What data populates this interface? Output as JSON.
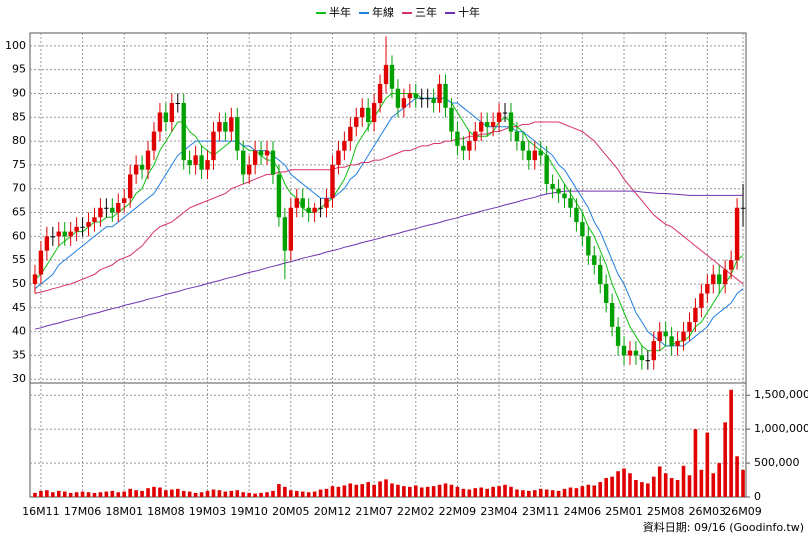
{
  "chart_data": {
    "type": "candlestick",
    "categories": [
      null,
      "16M11",
      null,
      null,
      null,
      null,
      null,
      null,
      "17M06",
      null,
      null,
      null,
      null,
      null,
      null,
      "18M01",
      null,
      null,
      null,
      null,
      null,
      null,
      "18M08",
      null,
      null,
      null,
      null,
      null,
      null,
      "19M03",
      null,
      null,
      null,
      null,
      null,
      null,
      "19M10",
      null,
      null,
      null,
      null,
      null,
      null,
      "20M05",
      null,
      null,
      null,
      null,
      null,
      null,
      "20M12",
      null,
      null,
      null,
      null,
      null,
      null,
      "21M07",
      null,
      null,
      null,
      null,
      null,
      null,
      "22M02",
      null,
      null,
      null,
      null,
      null,
      null,
      "22M09",
      null,
      null,
      null,
      null,
      null,
      null,
      "23M04",
      null,
      null,
      null,
      null,
      null,
      null,
      "23M11",
      null,
      null,
      null,
      null,
      null,
      null,
      "24M06",
      null,
      null,
      null,
      null,
      null,
      null,
      "25M01",
      null,
      null,
      null,
      null,
      null,
      null,
      "25M08",
      null,
      null,
      null,
      null,
      null,
      null,
      "26M03",
      null,
      null,
      null,
      null,
      null,
      "26M09"
    ],
    "open": [
      50,
      52,
      57,
      60,
      60,
      61,
      60,
      61,
      62,
      62,
      63,
      64,
      66,
      66,
      65,
      67,
      68,
      73,
      75,
      74,
      78,
      82,
      86,
      84,
      88,
      88,
      76,
      75,
      77,
      74,
      76,
      82,
      84,
      82,
      85,
      78,
      73,
      75,
      78,
      77,
      78,
      73,
      64,
      57,
      66,
      68,
      66,
      65,
      66,
      66,
      68,
      75,
      78,
      80,
      83,
      85,
      87,
      84,
      88,
      92,
      96,
      91,
      87,
      89,
      90,
      89,
      89,
      89,
      88,
      92,
      87,
      82,
      79,
      78,
      80,
      82,
      84,
      83,
      84,
      86,
      86,
      82,
      80,
      78,
      76,
      78,
      77,
      71,
      70,
      69,
      68,
      66,
      63,
      60,
      56,
      54,
      50,
      46,
      41,
      37,
      35,
      36,
      35,
      34,
      34,
      38,
      40,
      39,
      37,
      38,
      40,
      42,
      45,
      48,
      50,
      52,
      50,
      53,
      55,
      66
    ],
    "high": [
      54,
      59,
      62,
      62,
      63,
      63,
      63,
      64,
      64,
      65,
      66,
      68,
      68,
      68,
      69,
      70,
      75,
      77,
      77,
      80,
      84,
      88,
      88,
      90,
      90,
      90,
      78,
      79,
      79,
      78,
      84,
      86,
      86,
      87,
      87,
      80,
      77,
      80,
      80,
      80,
      80,
      75,
      66,
      68,
      70,
      70,
      68,
      67,
      68,
      70,
      77,
      80,
      82,
      85,
      87,
      89,
      89,
      90,
      94,
      102,
      98,
      93,
      91,
      92,
      92,
      91,
      91,
      91,
      94,
      94,
      89,
      84,
      81,
      82,
      84,
      86,
      86,
      86,
      88,
      88,
      88,
      84,
      82,
      80,
      80,
      80,
      79,
      73,
      72,
      71,
      70,
      68,
      65,
      62,
      58,
      56,
      52,
      48,
      43,
      39,
      38,
      38,
      37,
      36,
      40,
      42,
      42,
      41,
      40,
      42,
      44,
      47,
      50,
      52,
      54,
      54,
      55,
      57,
      68,
      71
    ],
    "low": [
      48,
      50,
      55,
      58,
      58,
      58,
      58,
      59,
      60,
      60,
      61,
      62,
      64,
      63,
      63,
      65,
      66,
      71,
      72,
      72,
      76,
      80,
      82,
      82,
      86,
      74,
      73,
      73,
      72,
      72,
      74,
      80,
      80,
      80,
      76,
      71,
      71,
      73,
      75,
      75,
      71,
      62,
      51,
      55,
      64,
      64,
      63,
      63,
      64,
      64,
      66,
      73,
      76,
      78,
      81,
      83,
      82,
      82,
      86,
      90,
      89,
      85,
      85,
      87,
      87,
      87,
      87,
      86,
      86,
      85,
      80,
      77,
      76,
      76,
      78,
      80,
      81,
      81,
      82,
      84,
      80,
      78,
      76,
      74,
      74,
      75,
      69,
      68,
      67,
      66,
      64,
      61,
      58,
      54,
      52,
      48,
      44,
      39,
      35,
      33,
      33,
      33,
      32,
      32,
      32,
      36,
      37,
      35,
      35,
      36,
      38,
      40,
      43,
      46,
      48,
      48,
      48,
      51,
      53,
      62
    ],
    "close": [
      52,
      57,
      60,
      60,
      61,
      60,
      61,
      62,
      62,
      63,
      64,
      66,
      66,
      65,
      67,
      68,
      73,
      75,
      74,
      78,
      82,
      86,
      84,
      88,
      88,
      76,
      75,
      77,
      74,
      76,
      82,
      84,
      82,
      85,
      78,
      73,
      75,
      78,
      77,
      78,
      73,
      64,
      57,
      66,
      68,
      66,
      65,
      66,
      66,
      68,
      75,
      78,
      80,
      83,
      85,
      87,
      84,
      88,
      92,
      96,
      91,
      87,
      89,
      90,
      89,
      89,
      89,
      88,
      92,
      87,
      82,
      79,
      78,
      80,
      82,
      84,
      83,
      84,
      86,
      86,
      82,
      80,
      78,
      76,
      78,
      77,
      71,
      70,
      69,
      68,
      66,
      63,
      60,
      56,
      54,
      50,
      46,
      41,
      37,
      35,
      36,
      35,
      34,
      34,
      38,
      40,
      39,
      37,
      38,
      40,
      42,
      45,
      48,
      50,
      52,
      50,
      53,
      55,
      66,
      66
    ],
    "up_color": "#e00000",
    "down_color": "#00a000",
    "ylim": [
      29.2,
      102.7
    ],
    "yticks": [
      30,
      35,
      40,
      45,
      50,
      55,
      60,
      65,
      70,
      75,
      80,
      85,
      90,
      95,
      100
    ],
    "grid": true,
    "series": [
      {
        "name": "半年",
        "color": "#10c010",
        "values": [
          51,
          52,
          54,
          56,
          58,
          59,
          60,
          61,
          61,
          62,
          63,
          63,
          64,
          64,
          65,
          66,
          67,
          69,
          70,
          73,
          75,
          78,
          80,
          82,
          84,
          84,
          82,
          81,
          79,
          78,
          77,
          78,
          79,
          80,
          80,
          79,
          78,
          78,
          77,
          76,
          76,
          74,
          71,
          69,
          68,
          66,
          65,
          65,
          66,
          67,
          68,
          70,
          72,
          75,
          79,
          81,
          83,
          85,
          87,
          89,
          90,
          90,
          90,
          90,
          90,
          89,
          89,
          89,
          89,
          89,
          88,
          86,
          84,
          82,
          81,
          81,
          81,
          82,
          84,
          85,
          84,
          83,
          82,
          80,
          79,
          78,
          77,
          75,
          73,
          71,
          69,
          67,
          65,
          62,
          60,
          57,
          54,
          50,
          47,
          44,
          41,
          39,
          37,
          36,
          36,
          36,
          37,
          37,
          38,
          38,
          39,
          41,
          42,
          44,
          46,
          48,
          50,
          52,
          55,
          56
        ]
      },
      {
        "name": "年線",
        "color": "#2080e0",
        "values": [
          49,
          50,
          51,
          52,
          54,
          55,
          56,
          57,
          58,
          59,
          60,
          61,
          62,
          62,
          63,
          64,
          65,
          66,
          67,
          68,
          69,
          71,
          73,
          75,
          77,
          78,
          79,
          80,
          80,
          80,
          80,
          80,
          80,
          80,
          80,
          79,
          79,
          78,
          78,
          78,
          77,
          76,
          75,
          73,
          72,
          71,
          70,
          69,
          68,
          68,
          68,
          69,
          70,
          72,
          73,
          75,
          77,
          79,
          81,
          83,
          85,
          86,
          87,
          88,
          89,
          89,
          89,
          89,
          89,
          89,
          88,
          88,
          87,
          86,
          85,
          84,
          83,
          83,
          83,
          83,
          83,
          82,
          82,
          81,
          80,
          79,
          78,
          77,
          75,
          74,
          72,
          70,
          68,
          66,
          63,
          61,
          58,
          55,
          52,
          50,
          47,
          44,
          42,
          40,
          39,
          38,
          37,
          37,
          37,
          37,
          38,
          39,
          40,
          41,
          43,
          44,
          45,
          46,
          48,
          49
        ]
      },
      {
        "name": "三年",
        "color": "#d8306e",
        "values": [
          48,
          48.3,
          48.6,
          49,
          49.3,
          49.7,
          50,
          50.5,
          51,
          51.5,
          52,
          53,
          53.5,
          54,
          55,
          55.5,
          56,
          57,
          58,
          59.5,
          61,
          62,
          62.5,
          63,
          64,
          65,
          66,
          66.5,
          67,
          67.5,
          68,
          68.5,
          69,
          70,
          70.5,
          71,
          71.5,
          72,
          72.5,
          73,
          73,
          73.5,
          73.5,
          74,
          74,
          74,
          74,
          74,
          74,
          74,
          74,
          74.5,
          74.5,
          75,
          75,
          75.5,
          75.5,
          76,
          76,
          76.5,
          77,
          77.5,
          78,
          78,
          78.5,
          79,
          79,
          79.5,
          79.5,
          80,
          80,
          80.5,
          80.5,
          81,
          81,
          81.5,
          81.5,
          82,
          82,
          82.5,
          83,
          83,
          83.5,
          83.5,
          84,
          84,
          84,
          84,
          84,
          83.5,
          83,
          82.5,
          82,
          81,
          80,
          78.5,
          77,
          75.5,
          74,
          72,
          70.5,
          69,
          67.5,
          66,
          64.5,
          63.5,
          62.5,
          62,
          61,
          60,
          59,
          58,
          57,
          56,
          55,
          54,
          53,
          52,
          51,
          50
        ]
      },
      {
        "name": "十年",
        "color": "#7030b0",
        "values": [
          40.5,
          40.8,
          41.2,
          41.5,
          41.8,
          42.2,
          42.5,
          42.8,
          43.1,
          43.5,
          43.8,
          44.1,
          44.5,
          44.8,
          45.1,
          45.5,
          45.8,
          46.1,
          46.4,
          46.8,
          47.1,
          47.4,
          47.8,
          48.1,
          48.4,
          48.8,
          49.1,
          49.4,
          49.7,
          50.1,
          50.4,
          50.7,
          51.1,
          51.4,
          51.7,
          52.1,
          52.4,
          52.7,
          53,
          53.4,
          53.7,
          54,
          54.4,
          54.7,
          55,
          55.4,
          55.7,
          56,
          56.3,
          56.7,
          57,
          57.3,
          57.7,
          58,
          58.3,
          58.7,
          59,
          59.3,
          59.6,
          60,
          60.3,
          60.6,
          61,
          61.3,
          61.6,
          62,
          62.3,
          62.6,
          62.9,
          63.3,
          63.6,
          63.9,
          64.3,
          64.6,
          64.9,
          65.3,
          65.6,
          65.9,
          66.2,
          66.6,
          66.9,
          67.2,
          67.6,
          67.9,
          68.2,
          68.6,
          68.9,
          69.1,
          69.3,
          69.5,
          69.5,
          69.5,
          69.5,
          69.5,
          69.5,
          69.5,
          69.5,
          69.5,
          69.5,
          69.5,
          69.5,
          69.5,
          69.3,
          69.2,
          69.1,
          69,
          69,
          68.9,
          68.8,
          68.7,
          68.6,
          68.6,
          68.6,
          68.6,
          68.6,
          68.6,
          68.6,
          68.6,
          68.6,
          68.6
        ]
      }
    ],
    "volume": {
      "color": "#e00000",
      "ylim": [
        0,
        1680000
      ],
      "yticks": [
        0,
        {
          "value": 500000,
          "label": "500,000"
        },
        {
          "value": 1000000,
          "label": "1,000,000"
        },
        {
          "value": 1500000,
          "label": "1,500,000"
        }
      ],
      "values": [
        60000,
        90000,
        100000,
        70000,
        90000,
        80000,
        60000,
        70000,
        80000,
        70000,
        60000,
        70000,
        80000,
        90000,
        70000,
        80000,
        120000,
        100000,
        90000,
        130000,
        150000,
        140000,
        100000,
        110000,
        120000,
        90000,
        80000,
        60000,
        70000,
        90000,
        110000,
        100000,
        80000,
        90000,
        100000,
        70000,
        60000,
        50000,
        60000,
        70000,
        90000,
        190000,
        150000,
        100000,
        90000,
        80000,
        70000,
        80000,
        110000,
        120000,
        160000,
        150000,
        170000,
        200000,
        180000,
        190000,
        220000,
        180000,
        230000,
        260000,
        200000,
        180000,
        160000,
        150000,
        170000,
        140000,
        150000,
        160000,
        180000,
        200000,
        180000,
        150000,
        120000,
        110000,
        130000,
        140000,
        120000,
        150000,
        160000,
        180000,
        150000,
        110000,
        100000,
        90000,
        100000,
        120000,
        110000,
        100000,
        90000,
        120000,
        140000,
        130000,
        160000,
        180000,
        170000,
        220000,
        280000,
        300000,
        380000,
        420000,
        350000,
        250000,
        220000,
        200000,
        300000,
        450000,
        350000,
        280000,
        250000,
        460000,
        320000,
        1000000,
        400000,
        950000,
        350000,
        500000,
        1100000,
        1580000,
        600000,
        400000
      ]
    },
    "footer": "資料日期: 09/16 (Goodinfo.tw)"
  }
}
